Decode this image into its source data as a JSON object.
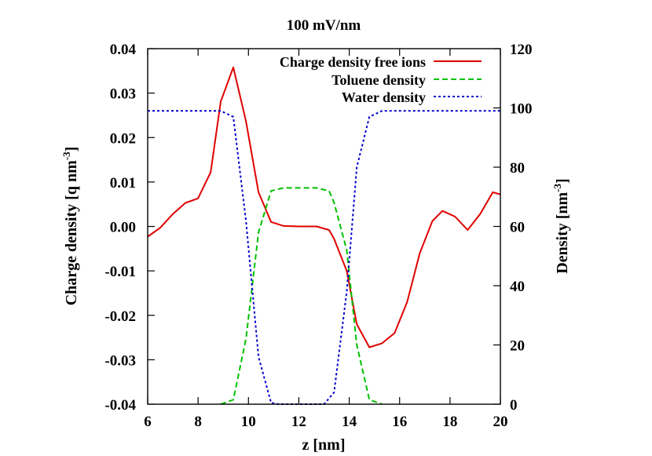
{
  "chart_data": {
    "type": "line",
    "title": "100 mV/nm",
    "xlabel": "z [nm]",
    "ylabel": "Charge density [q nm",
    "ylabel_sup": "-3",
    "ylabel_end": "]",
    "y2label": "Density [nm",
    "y2label_sup": "-3",
    "y2label_end": "]",
    "xlim": [
      6,
      20
    ],
    "ylim": [
      -0.04,
      0.04
    ],
    "y2lim": [
      0,
      120
    ],
    "xticks": [
      "6",
      "8",
      "10",
      "12",
      "14",
      "16",
      "18",
      "20"
    ],
    "yticks": [
      "-0.04",
      "-0.03",
      "-0.02",
      "-0.01",
      "0.00",
      "0.01",
      "0.02",
      "0.03",
      "0.04"
    ],
    "y2ticks": [
      "0",
      "20",
      "40",
      "60",
      "80",
      "100",
      "120"
    ],
    "legend_position": "top-right",
    "grid": false,
    "series": [
      {
        "name": "Charge density free ions",
        "axis": "left",
        "color": "#e00000",
        "dash": "solid",
        "x": [
          6.0,
          6.5,
          7.0,
          7.5,
          8.0,
          8.5,
          8.9,
          9.4,
          9.9,
          10.4,
          10.9,
          11.4,
          12.0,
          12.7,
          13.2,
          13.4,
          13.9,
          14.3,
          14.8,
          15.3,
          15.8,
          16.3,
          16.8,
          17.3,
          17.7,
          18.2,
          18.7,
          19.2,
          19.7,
          20.0
        ],
        "y": [
          -0.0023,
          -0.0003,
          0.0028,
          0.0053,
          0.0063,
          0.0122,
          0.0281,
          0.0358,
          0.0237,
          0.0077,
          0.001,
          0.0001,
          0.0,
          0.0,
          -0.0008,
          -0.0028,
          -0.01,
          -0.022,
          -0.0272,
          -0.0263,
          -0.024,
          -0.017,
          -0.006,
          0.0012,
          0.0035,
          0.0022,
          -0.0008,
          0.0028,
          0.0077,
          0.0072
        ]
      },
      {
        "name": "Toluene density",
        "axis": "right",
        "color": "#00c000",
        "dash": "dashed",
        "x": [
          8.9,
          9.4,
          9.9,
          10.4,
          10.9,
          11.4,
          12.0,
          12.7,
          13.2,
          13.4,
          13.9,
          14.3,
          14.8,
          15.3
        ],
        "y": [
          0.0,
          1.5,
          22.0,
          58.0,
          72.0,
          73.0,
          73.0,
          73.0,
          72.0,
          68.0,
          52.0,
          20.0,
          1.5,
          0.0
        ]
      },
      {
        "name": "Water density",
        "axis": "right",
        "color": "#0000cc",
        "dash": "dotted",
        "x": [
          6.0,
          7.5,
          8.9,
          9.4,
          9.9,
          10.4,
          10.9,
          11.2,
          12.0,
          13.0,
          13.4,
          13.9,
          14.3,
          14.8,
          15.3,
          16.5,
          18.0,
          20.0
        ],
        "y": [
          99.0,
          99.0,
          99.0,
          97.0,
          62.0,
          16.0,
          0.5,
          0.0,
          0.0,
          0.0,
          4.0,
          38.0,
          80.0,
          97.0,
          99.0,
          99.0,
          99.0,
          99.0
        ]
      }
    ]
  }
}
